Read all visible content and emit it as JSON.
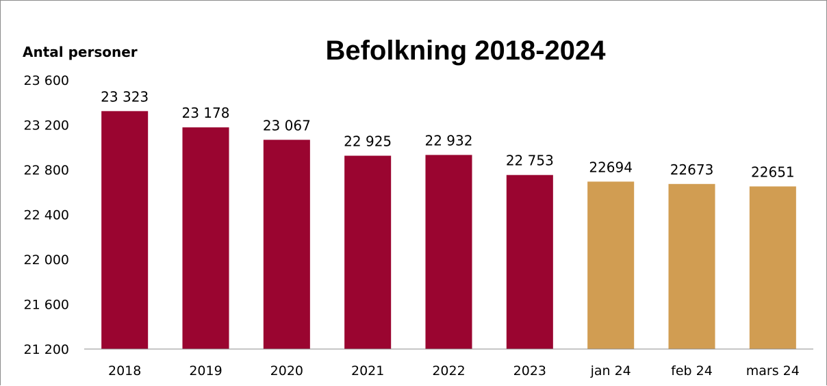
{
  "chart_data": {
    "type": "bar",
    "title": "Befolkning 2018-2024",
    "ylabel": "Antal personer",
    "xlabel": "",
    "ylim": [
      21200,
      23600
    ],
    "yticks": [
      {
        "value": 21200,
        "label": "21 200"
      },
      {
        "value": 21600,
        "label": "21 600"
      },
      {
        "value": 22000,
        "label": "22 000"
      },
      {
        "value": 22400,
        "label": "22 400"
      },
      {
        "value": 22800,
        "label": "22 800"
      },
      {
        "value": 23200,
        "label": "23 200"
      },
      {
        "value": 23600,
        "label": "23 600"
      }
    ],
    "categories": [
      "2018",
      "2019",
      "2020",
      "2021",
      "2022",
      "2023",
      "jan 24",
      "feb 24",
      "mars 24"
    ],
    "values": [
      23323,
      23178,
      23067,
      22925,
      22932,
      22753,
      22694,
      22673,
      22651
    ],
    "data_labels": [
      "23 323",
      "23 178",
      "23 067",
      "22 925",
      "22 932",
      "22 753",
      "22694",
      "22673",
      "22651"
    ],
    "bar_colors": [
      "#9a0530",
      "#9a0530",
      "#9a0530",
      "#9a0530",
      "#9a0530",
      "#9a0530",
      "#d19d52",
      "#d19d52",
      "#d19d52"
    ],
    "grid": false,
    "legend": "none"
  }
}
